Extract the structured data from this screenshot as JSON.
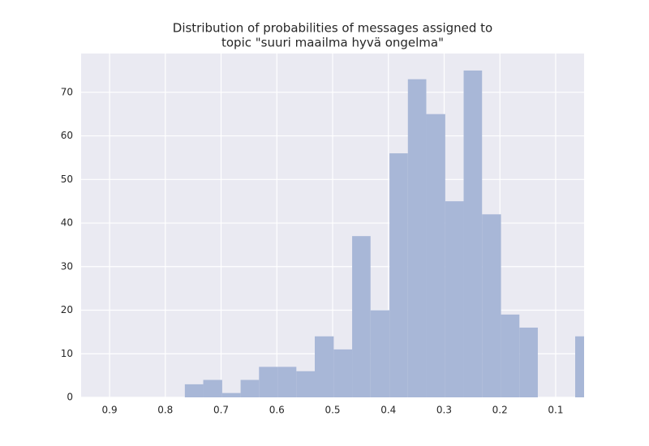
{
  "chart_data": {
    "type": "histogram",
    "title": [
      "Distribution of probabilities of messages assigned to",
      "topic \"suuri maailma hyvä ongelma\""
    ],
    "bins": [
      0.032,
      0.065,
      0.098,
      0.132,
      0.165,
      0.198,
      0.232,
      0.265,
      0.298,
      0.332,
      0.365,
      0.398,
      0.432,
      0.465,
      0.498,
      0.532,
      0.565,
      0.598,
      0.632,
      0.665,
      0.698,
      0.732,
      0.765
    ],
    "values": [
      14,
      0,
      0,
      16,
      19,
      42,
      75,
      45,
      65,
      73,
      56,
      20,
      37,
      11,
      14,
      6,
      7,
      7,
      4,
      1,
      4,
      3
    ],
    "color": "#a8b7d7",
    "xlim": [
      0.951,
      0.049
    ],
    "xticks": [
      0.9,
      0.8,
      0.7,
      0.6,
      0.5,
      0.4,
      0.3,
      0.2,
      0.1
    ],
    "ylim": [
      0,
      78.9
    ],
    "yticks": [
      0,
      10,
      20,
      30,
      40,
      50,
      60,
      70
    ],
    "grid": true
  }
}
